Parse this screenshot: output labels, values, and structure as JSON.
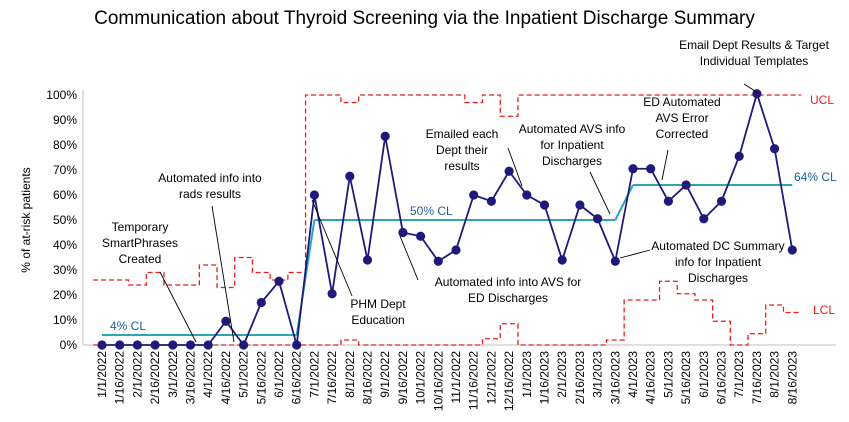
{
  "chart_data": {
    "type": "line",
    "title": "Communication about Thyroid Screening via the Inpatient Discharge Summary",
    "ylabel": "% of at-risk patients",
    "xlabel": "",
    "ylim": [
      0,
      100
    ],
    "y_ticks": [
      "0%",
      "10%",
      "20%",
      "30%",
      "40%",
      "50%",
      "60%",
      "70%",
      "80%",
      "90%",
      "100%"
    ],
    "x": [
      "1/1/2022",
      "1/16/2022",
      "2/1/2022",
      "2/16/2022",
      "3/1/2022",
      "3/16/2022",
      "4/1/2022",
      "4/16/2022",
      "5/1/2022",
      "5/16/2022",
      "6/1/2022",
      "6/16/2022",
      "7/1/2022",
      "7/16/2022",
      "8/1/2022",
      "8/16/2022",
      "9/1/2022",
      "9/16/2022",
      "10/1/2022",
      "10/16/2022",
      "11/1/2022",
      "11/16/2022",
      "12/1/2022",
      "12/16/2022",
      "1/1/2023",
      "1/16/2023",
      "2/1/2023",
      "2/16/2023",
      "3/1/2023",
      "3/16/2023",
      "4/1/2023",
      "4/16/2023",
      "5/1/2023",
      "5/16/2023",
      "6/1/2023",
      "6/16/2023",
      "7/1/2023",
      "7/16/2023",
      "8/1/2023",
      "8/16/2023"
    ],
    "series": [
      {
        "name": "Data",
        "color": "#1f1a7a",
        "values": [
          0,
          0,
          0,
          0,
          0,
          0,
          0,
          9.5,
          0,
          17,
          25.5,
          0,
          60,
          20.5,
          67.5,
          34,
          83.5,
          45,
          43.5,
          33.5,
          38,
          60,
          57.5,
          69.5,
          60,
          56,
          34,
          56,
          50.5,
          33.5,
          70.5,
          70.5,
          57.5,
          64,
          50.5,
          57.5,
          75.5,
          100.5,
          78.5,
          38
        ]
      },
      {
        "name": "UCL",
        "color": "#e32020",
        "values": [
          26,
          26,
          24,
          29,
          24,
          24,
          32,
          23,
          35,
          29,
          26,
          29,
          100,
          100,
          97,
          100,
          100,
          100,
          100,
          100,
          100,
          97,
          100,
          91.5,
          100,
          100,
          100,
          100,
          100,
          100,
          100,
          100,
          100,
          100,
          100,
          100,
          100,
          100,
          100,
          100
        ]
      },
      {
        "name": "LCL",
        "color": "#e32020",
        "values": [
          0,
          0,
          0,
          0,
          0,
          0,
          0,
          0,
          0,
          0,
          0,
          0,
          0,
          0,
          2,
          0,
          0,
          0,
          0,
          0,
          0,
          0,
          2.5,
          8.5,
          0,
          0,
          0,
          0,
          0,
          2,
          18,
          18,
          25.5,
          20.5,
          18,
          9.5,
          0,
          4.5,
          16,
          13
        ]
      },
      {
        "name": "Center Line",
        "color": "#2aa7b3",
        "values": [
          4,
          4,
          4,
          4,
          4,
          4,
          4,
          4,
          4,
          4,
          4,
          4,
          50,
          50,
          50,
          50,
          50,
          50,
          50,
          50,
          50,
          50,
          50,
          50,
          50,
          50,
          50,
          50,
          50,
          50,
          64,
          64,
          64,
          64,
          64,
          64,
          64,
          64,
          64,
          64
        ]
      }
    ],
    "line_labels": {
      "ucl": "UCL",
      "lcl": "LCL",
      "cl1": "4% CL",
      "cl2": "50% CL",
      "cl3": "64% CL"
    },
    "annotations": [
      {
        "id": "temp-smartphrases",
        "lines": [
          "Temporary",
          "SmartPhrases",
          "Created"
        ],
        "point_index": 6
      },
      {
        "id": "rads-results",
        "lines": [
          "Automated info into",
          "rads results"
        ],
        "point_index": 8
      },
      {
        "id": "phm-education",
        "lines": [
          "PHM Dept",
          "Education"
        ],
        "point_index": 12
      },
      {
        "id": "avs-ed",
        "lines": [
          "Automated info into AVS for",
          "ED Discharges"
        ],
        "point_index": 17
      },
      {
        "id": "emailed-dept",
        "lines": [
          "Emailed each",
          "Dept their",
          "results"
        ],
        "point_index": 24
      },
      {
        "id": "avs-inpatient",
        "lines": [
          "Automated AVS info",
          "for Inpatient",
          "Discharges"
        ],
        "point_index": 28
      },
      {
        "id": "dc-summary",
        "lines": [
          "Automated DC Summary",
          "info for Inpatient",
          "Discharges"
        ],
        "point_index": 29
      },
      {
        "id": "ed-avs-error",
        "lines": [
          "ED Automated",
          "AVS Error",
          "Corrected"
        ],
        "point_index": 33
      },
      {
        "id": "email-templates",
        "lines": [
          "Email Dept Results & Target",
          "Individual Templates"
        ],
        "point_index": 37
      }
    ],
    "grid": false,
    "legend": "none"
  }
}
